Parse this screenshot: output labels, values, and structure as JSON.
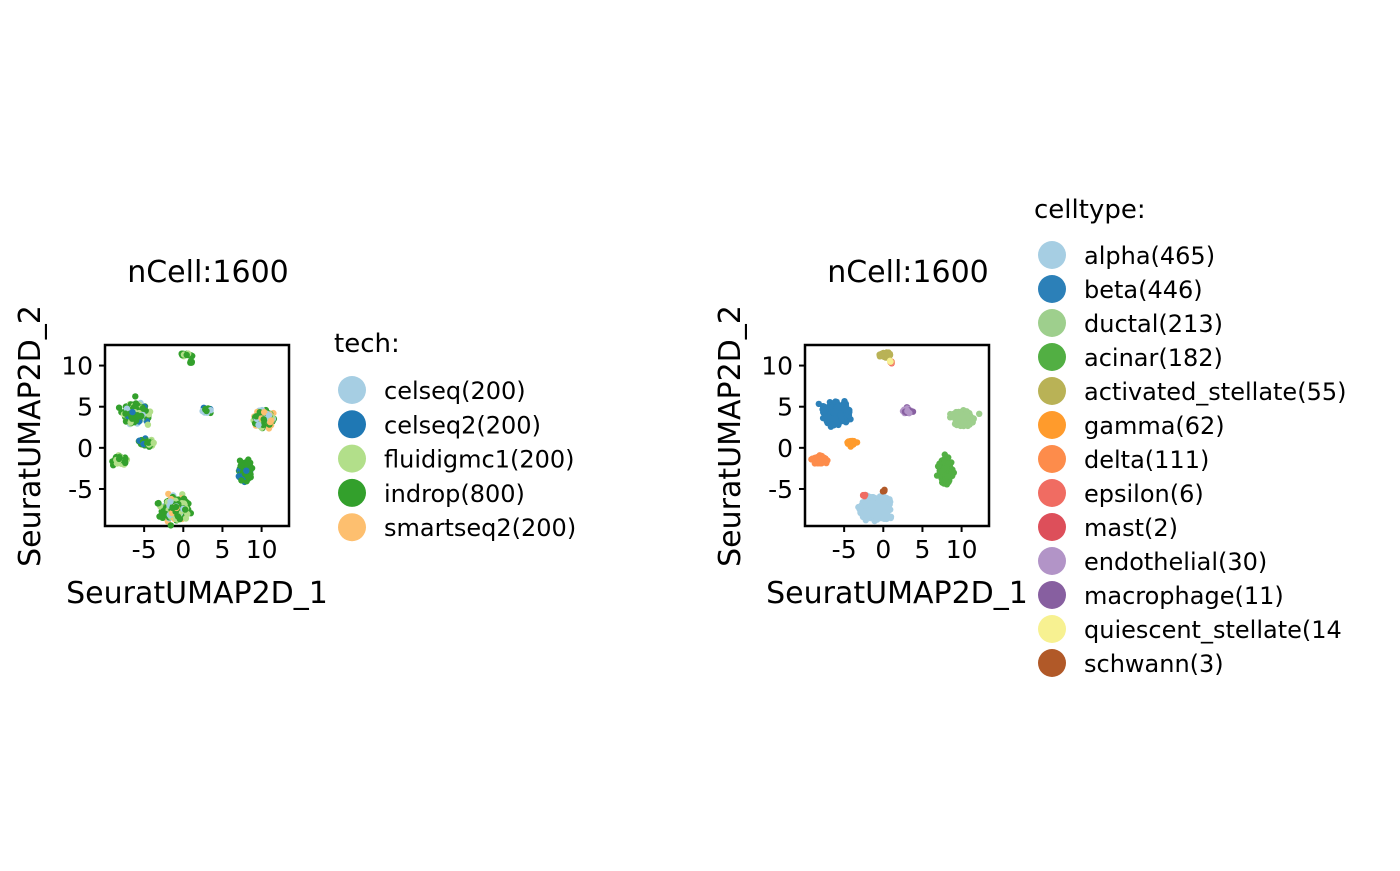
{
  "chart_data": [
    {
      "type": "scatter",
      "title": "nCell:1600",
      "xlabel": "SeuratUMAP2D_1",
      "ylabel": "SeuratUMAP2D_2",
      "xlim": [
        -10,
        13.5
      ],
      "ylim": [
        -9.5,
        12.5
      ],
      "xticks": [
        -5,
        0,
        5,
        10
      ],
      "yticks": [
        -5,
        0,
        5,
        10
      ],
      "grid": false,
      "legend": {
        "title": "tech:",
        "placement": "right",
        "entries": [
          {
            "label": "celseq(200)",
            "color": "#A6CEE3"
          },
          {
            "label": "celseq2(200)",
            "color": "#1F78B4"
          },
          {
            "label": "fluidigmc1(200)",
            "color": "#B2DF8A"
          },
          {
            "label": "indrop(800)",
            "color": "#33A02C"
          },
          {
            "label": "smartseq2(200)",
            "color": "#FDBF6F"
          }
        ]
      },
      "clusters": [
        {
          "x": -6.0,
          "y": 4.2,
          "sx": 1.1,
          "sy": 0.9,
          "n": 300,
          "mix": [
            [
              0,
              0.05
            ],
            [
              1,
              0.05
            ],
            [
              2,
              0.3
            ],
            [
              3,
              0.6
            ]
          ]
        },
        {
          "x": -5.2,
          "y": 0.6,
          "sx": 0.5,
          "sy": 0.3,
          "n": 30,
          "mix": [
            [
              3,
              0.8
            ],
            [
              1,
              0.2
            ]
          ]
        },
        {
          "x": -4.3,
          "y": 0.5,
          "sx": 0.35,
          "sy": 0.25,
          "n": 20,
          "mix": [
            [
              3,
              0.5
            ],
            [
              2,
              0.5
            ]
          ]
        },
        {
          "x": -8.0,
          "y": -1.5,
          "sx": 0.7,
          "sy": 0.4,
          "n": 60,
          "mix": [
            [
              3,
              0.6
            ],
            [
              2,
              0.4
            ]
          ]
        },
        {
          "x": 0.3,
          "y": 11.3,
          "sx": 0.5,
          "sy": 0.2,
          "n": 25,
          "mix": [
            [
              3,
              0.9
            ],
            [
              2,
              0.1
            ]
          ]
        },
        {
          "x": 1.0,
          "y": 10.4,
          "sx": 0.15,
          "sy": 0.15,
          "n": 5,
          "mix": [
            [
              3,
              1
            ]
          ]
        },
        {
          "x": 3.0,
          "y": 4.6,
          "sx": 0.4,
          "sy": 0.3,
          "n": 20,
          "mix": [
            [
              3,
              0.5
            ],
            [
              1,
              0.3
            ],
            [
              0,
              0.2
            ]
          ]
        },
        {
          "x": 10.2,
          "y": 3.6,
          "sx": 0.9,
          "sy": 0.7,
          "n": 200,
          "mix": [
            [
              0,
              0.3
            ],
            [
              3,
              0.4
            ],
            [
              2,
              0.15
            ],
            [
              4,
              0.15
            ]
          ]
        },
        {
          "x": 8.0,
          "y": -2.8,
          "sx": 0.6,
          "sy": 1.0,
          "n": 120,
          "mix": [
            [
              3,
              0.8
            ],
            [
              1,
              0.2
            ]
          ]
        },
        {
          "x": -1.0,
          "y": -7.4,
          "sx": 1.2,
          "sy": 0.9,
          "n": 450,
          "mix": [
            [
              3,
              0.45
            ],
            [
              4,
              0.25
            ],
            [
              2,
              0.2
            ],
            [
              0,
              0.1
            ]
          ]
        }
      ]
    },
    {
      "type": "scatter",
      "title": "nCell:1600",
      "xlabel": "SeuratUMAP2D_1",
      "ylabel": "SeuratUMAP2D_2",
      "xlim": [
        -10,
        13.5
      ],
      "ylim": [
        -9.5,
        12.5
      ],
      "xticks": [
        -5,
        0,
        5,
        10
      ],
      "yticks": [
        -5,
        0,
        5,
        10
      ],
      "grid": false,
      "legend": {
        "title": "celltype:",
        "placement": "right",
        "entries": [
          {
            "label": "alpha(465)",
            "color": "#A6CEE3"
          },
          {
            "label": "beta(446)",
            "color": "#2C80B8"
          },
          {
            "label": "ductal(213)",
            "color": "#9ECF8D"
          },
          {
            "label": "acinar(182)",
            "color": "#52AF43"
          },
          {
            "label": "activated_stellate(55)",
            "color": "#B9B256"
          },
          {
            "label": "gamma(62)",
            "color": "#FF9B2C"
          },
          {
            "label": "delta(111)",
            "color": "#FD8C4B"
          },
          {
            "label": "epsilon(6)",
            "color": "#F06C62"
          },
          {
            "label": "mast(2)",
            "color": "#DD4F5A"
          },
          {
            "label": "endothelial(30)",
            "color": "#B294C7"
          },
          {
            "label": "macrophage(11)",
            "color": "#875FA0"
          },
          {
            "label": "quiescent_stellate(14",
            "color": "#F7F191"
          },
          {
            "label": "schwann(3)",
            "color": "#B15928"
          }
        ]
      },
      "clusters": [
        {
          "x": -6.0,
          "y": 4.2,
          "sx": 1.1,
          "sy": 0.9,
          "n": 440,
          "mix": [
            [
              1,
              1
            ]
          ]
        },
        {
          "x": -4.2,
          "y": 0.6,
          "sx": 0.4,
          "sy": 0.3,
          "n": 30,
          "mix": [
            [
              5,
              1
            ]
          ]
        },
        {
          "x": -8.0,
          "y": -1.5,
          "sx": 0.7,
          "sy": 0.35,
          "n": 110,
          "mix": [
            [
              6,
              1
            ]
          ]
        },
        {
          "x": 0.3,
          "y": 11.3,
          "sx": 0.5,
          "sy": 0.25,
          "n": 55,
          "mix": [
            [
              4,
              1
            ]
          ]
        },
        {
          "x": 1.0,
          "y": 10.4,
          "sx": 0.2,
          "sy": 0.15,
          "n": 10,
          "mix": [
            [
              7,
              0.4
            ],
            [
              11,
              0.6
            ]
          ]
        },
        {
          "x": 3.0,
          "y": 4.5,
          "sx": 0.4,
          "sy": 0.3,
          "n": 40,
          "mix": [
            [
              9,
              0.7
            ],
            [
              10,
              0.3
            ]
          ]
        },
        {
          "x": 10.2,
          "y": 3.6,
          "sx": 0.9,
          "sy": 0.7,
          "n": 210,
          "mix": [
            [
              2,
              1
            ]
          ]
        },
        {
          "x": 8.0,
          "y": -2.8,
          "sx": 0.6,
          "sy": 1.0,
          "n": 180,
          "mix": [
            [
              3,
              1
            ]
          ]
        },
        {
          "x": -1.0,
          "y": -7.4,
          "sx": 1.2,
          "sy": 0.9,
          "n": 460,
          "mix": [
            [
              0,
              1
            ]
          ]
        },
        {
          "x": -2.5,
          "y": -5.8,
          "sx": 0.2,
          "sy": 0.2,
          "n": 6,
          "mix": [
            [
              7,
              1
            ]
          ]
        },
        {
          "x": 0.2,
          "y": -5.3,
          "sx": 0.2,
          "sy": 0.2,
          "n": 3,
          "mix": [
            [
              12,
              1
            ]
          ]
        }
      ]
    }
  ]
}
